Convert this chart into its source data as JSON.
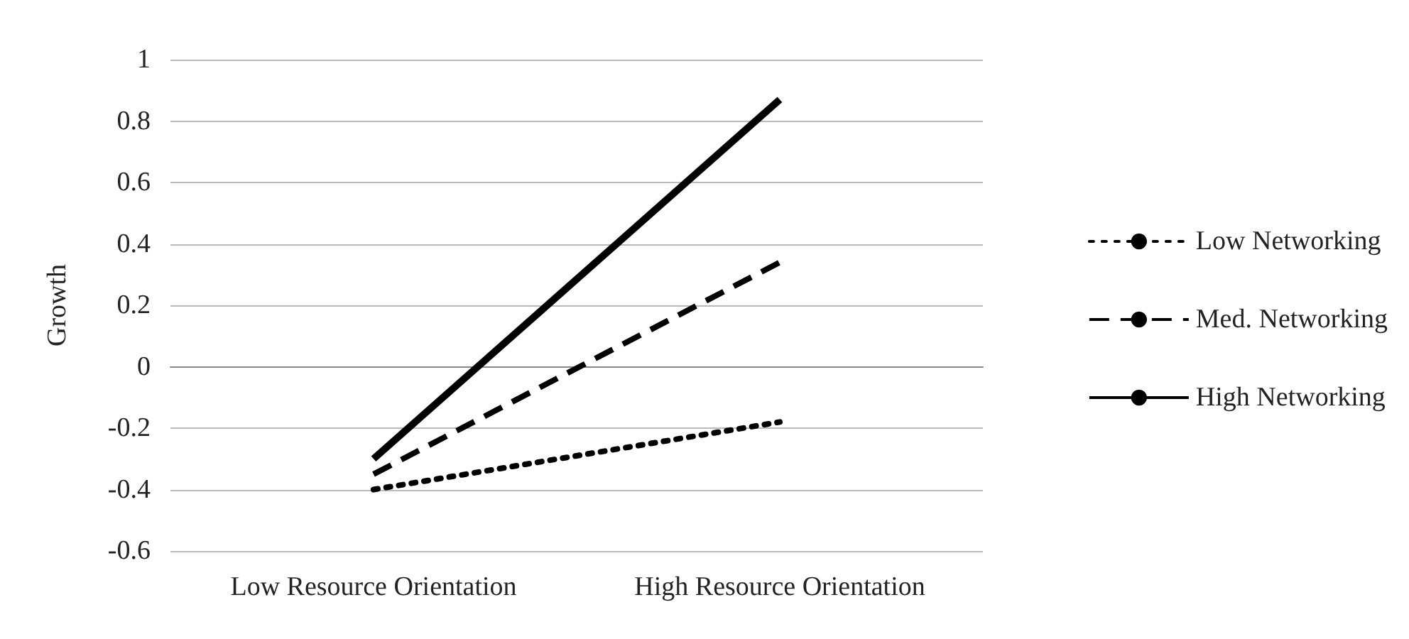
{
  "chart_data": {
    "type": "line",
    "ylabel": "Growth",
    "categories": [
      "Low Resource Orientation",
      "High Resource Orientation"
    ],
    "series": [
      {
        "name": "Low Networking",
        "color": "#000000",
        "line_style": "dotted",
        "values": [
          -0.4,
          -0.18
        ]
      },
      {
        "name": "Med. Networking",
        "color": "#000000",
        "line_style": "dashed",
        "values": [
          -0.35,
          0.34
        ]
      },
      {
        "name": "High Networking",
        "color": "#000000",
        "line_style": "solid",
        "values": [
          -0.3,
          0.87
        ]
      }
    ],
    "ylim": [
      -0.6,
      1
    ],
    "yticks": [
      -0.6,
      -0.4,
      -0.2,
      0,
      0.2,
      0.4,
      0.6,
      0.8,
      1
    ],
    "grid": "y",
    "legend": "right",
    "marker": "none"
  }
}
